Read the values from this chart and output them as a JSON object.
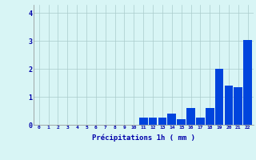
{
  "categories": [
    0,
    1,
    2,
    3,
    4,
    5,
    6,
    7,
    8,
    9,
    10,
    11,
    12,
    13,
    14,
    15,
    16,
    17,
    18,
    19,
    20,
    21,
    22
  ],
  "values": [
    0,
    0,
    0,
    0,
    0,
    0,
    0,
    0,
    0,
    0,
    0,
    0.25,
    0.25,
    0.25,
    0.4,
    0.2,
    0.6,
    0.25,
    0.6,
    2.0,
    1.4,
    1.35,
    3.05
  ],
  "bar_color": "#0044dd",
  "background_color": "#d8f5f5",
  "grid_color": "#aacccc",
  "xlabel": "Précipitations 1h ( mm )",
  "xlabel_color": "#0000aa",
  "tick_color": "#0000aa",
  "ylim": [
    0,
    4.3
  ],
  "yticks": [
    0,
    1,
    2,
    3,
    4
  ],
  "figsize": [
    3.2,
    2.0
  ],
  "dpi": 100
}
